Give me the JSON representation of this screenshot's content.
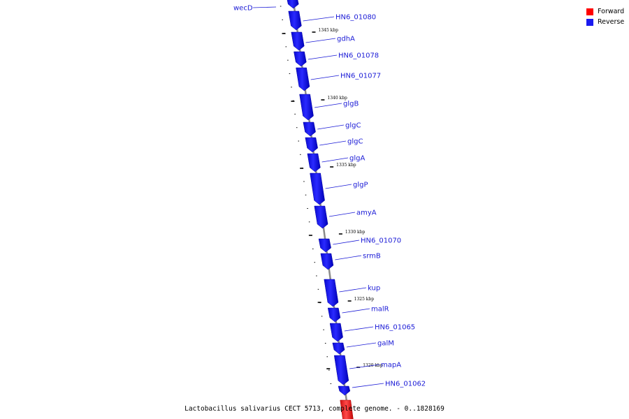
{
  "colors": {
    "forward": "#ff0000",
    "reverse": "#1a1af0",
    "label": "#1a1ad6",
    "backbone": "#8a8a8a"
  },
  "legend": {
    "forward_label": "Forward",
    "reverse_label": "Reverse"
  },
  "caption": "Lactobacillus salivarius CECT 5713, complete genome. - 0..1828169",
  "genes": [
    {
      "name": "wecD",
      "strand": "reverse"
    },
    {
      "name": "HN6_01080",
      "strand": "reverse"
    },
    {
      "name": "gdhA",
      "strand": "reverse"
    },
    {
      "name": "HN6_01078",
      "strand": "reverse"
    },
    {
      "name": "HN6_01077",
      "strand": "reverse"
    },
    {
      "name": "glgB",
      "strand": "reverse"
    },
    {
      "name": "glgC",
      "strand": "reverse"
    },
    {
      "name": "glgC",
      "strand": "reverse"
    },
    {
      "name": "glgA",
      "strand": "reverse"
    },
    {
      "name": "glgP",
      "strand": "reverse"
    },
    {
      "name": "amyA",
      "strand": "reverse"
    },
    {
      "name": "HN6_01070",
      "strand": "reverse"
    },
    {
      "name": "srmB",
      "strand": "reverse"
    },
    {
      "name": "kup",
      "strand": "reverse"
    },
    {
      "name": "malR",
      "strand": "reverse"
    },
    {
      "name": "HN6_01065",
      "strand": "reverse"
    },
    {
      "name": "galM",
      "strand": "reverse"
    },
    {
      "name": "mapA",
      "strand": "reverse"
    },
    {
      "name": "HN6_01062",
      "strand": "reverse"
    },
    {
      "name": "",
      "strand": "forward"
    }
  ],
  "scale_ticks": [
    {
      "label": "1345 kbp"
    },
    {
      "label": "1340 kbp"
    },
    {
      "label": "1335 kbp"
    },
    {
      "label": "1330 kbp"
    },
    {
      "label": "1325 kbp"
    },
    {
      "label": "1320 kbp"
    }
  ]
}
